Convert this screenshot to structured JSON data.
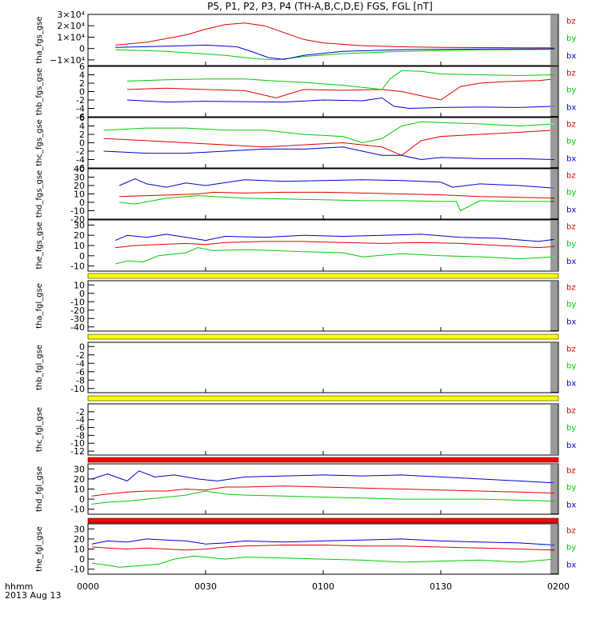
{
  "title": "P5, P1, P2, P3, P4 (TH-A,B,C,D,E) FGS, FGL [nT]",
  "footer": {
    "time_label": "hhmm",
    "date_label": "2013 Aug 13"
  },
  "legend": {
    "bz": "bz",
    "by": "by",
    "bx": "bx"
  },
  "colors": {
    "bx": "#0000cc",
    "by": "#00cc00",
    "bz": "#dd0000",
    "bar_yellow": "#ffff00",
    "bar_red": "#ff0000"
  },
  "chart_data": {
    "type": "line",
    "x_axis": {
      "unit": "hhmm",
      "ticks": [
        "0000",
        "0030",
        "0100",
        "0130",
        "0200"
      ],
      "range_minutes": [
        0,
        120
      ]
    },
    "panels": [
      {
        "ylabel": "tha_fgs_gse",
        "ylim": [
          -15000,
          30000
        ],
        "ytick_labels": [
          "3×10⁴",
          "2×10⁴",
          "1×10⁴",
          "0",
          "−1×10⁴"
        ],
        "ytick_values": [
          30000,
          20000,
          10000,
          0,
          -10000
        ],
        "series": [
          {
            "name": "bz",
            "x": [
              7,
              15,
              25,
              30,
              35,
              40,
              45,
              50,
              55,
              60,
              70,
              80,
              90,
              100,
              110,
              119
            ],
            "y": [
              3000,
              5500,
              12000,
              17000,
              21000,
              22500,
              20000,
              14000,
              8000,
              5000,
              2500,
              1500,
              1000,
              800,
              700,
              600
            ]
          },
          {
            "name": "by",
            "x": [
              7,
              20,
              35,
              43,
              48,
              55,
              65,
              80,
              100,
              119
            ],
            "y": [
              -1000,
              -2500,
              -6000,
              -9000,
              -10000,
              -7000,
              -4500,
              -2500,
              -1200,
              -800
            ]
          },
          {
            "name": "bx",
            "x": [
              7,
              20,
              30,
              38,
              42,
              46,
              50,
              55,
              65,
              80,
              100,
              119
            ],
            "y": [
              1000,
              2000,
              3000,
              1500,
              -3000,
              -8000,
              -9500,
              -6000,
              -2500,
              -1000,
              -400,
              -200
            ]
          }
        ]
      },
      {
        "ylabel": "thb_fgs_gse",
        "ylim": [
          -6,
          6
        ],
        "ytick_labels": [
          "6",
          "4",
          "2",
          "0",
          "-2",
          "-4",
          "-6"
        ],
        "ytick_values": [
          6,
          4,
          2,
          0,
          -2,
          -4,
          -6
        ],
        "series": [
          {
            "name": "bz",
            "x": [
              10,
              20,
              30,
              40,
              48,
              55,
              65,
              75,
              80,
              85,
              90,
              95,
              100,
              105,
              110,
              115,
              119
            ],
            "y": [
              0.5,
              0.8,
              0.5,
              0.2,
              -1.5,
              0.5,
              0.3,
              0.5,
              0,
              -1,
              -2,
              1.2,
              2,
              2.3,
              2.5,
              2.6,
              3
            ]
          },
          {
            "name": "by",
            "x": [
              10,
              20,
              30,
              40,
              48,
              55,
              65,
              75,
              77,
              80,
              85,
              90,
              100,
              110,
              119
            ],
            "y": [
              2.5,
              2.8,
              3,
              3,
              2.5,
              2.2,
              1.5,
              0.5,
              3,
              5,
              4.8,
              4.2,
              4,
              3.8,
              4
            ]
          },
          {
            "name": "bx",
            "x": [
              10,
              20,
              30,
              40,
              50,
              60,
              70,
              75,
              78,
              82,
              90,
              100,
              110,
              119
            ],
            "y": [
              -2,
              -2.5,
              -2.3,
              -2.4,
              -2.5,
              -2,
              -2.2,
              -1.5,
              -3.5,
              -4,
              -3.8,
              -3.7,
              -3.8,
              -3.5
            ]
          }
        ]
      },
      {
        "ylabel": "thc_fgs_gse",
        "ylim": [
          -6,
          6
        ],
        "ytick_labels": [
          "6",
          "4",
          "2",
          "0",
          "-2",
          "-4",
          "-6"
        ],
        "ytick_values": [
          6,
          4,
          2,
          0,
          -2,
          -4,
          -6
        ],
        "series": [
          {
            "name": "bz",
            "x": [
              4,
              15,
              25,
              35,
              45,
              55,
              65,
              70,
              75,
              80,
              85,
              90,
              100,
              110,
              119
            ],
            "y": [
              1,
              0.5,
              0,
              -0.5,
              -1,
              -0.5,
              0,
              -0.5,
              -1,
              -3,
              0.5,
              1.5,
              2,
              2.5,
              3
            ]
          },
          {
            "name": "by",
            "x": [
              4,
              15,
              25,
              35,
              45,
              55,
              65,
              70,
              75,
              80,
              85,
              90,
              100,
              110,
              119
            ],
            "y": [
              3,
              3.5,
              3.5,
              3,
              3,
              2,
              1.5,
              0,
              1,
              4,
              5,
              4.8,
              4.5,
              4,
              4.5
            ]
          },
          {
            "name": "bx",
            "x": [
              4,
              15,
              25,
              35,
              45,
              55,
              65,
              70,
              75,
              80,
              85,
              90,
              100,
              110,
              119
            ],
            "y": [
              -2,
              -2.5,
              -2.5,
              -2,
              -1.5,
              -1.5,
              -1,
              -2,
              -3,
              -3,
              -4,
              -3.5,
              -3.8,
              -3.8,
              -4
            ]
          }
        ]
      },
      {
        "ylabel": "thd_fgs_gse",
        "ylim": [
          -20,
          40
        ],
        "ytick_labels": [
          "40",
          "30",
          "20",
          "10",
          "0",
          "-10",
          "-20"
        ],
        "ytick_values": [
          40,
          30,
          20,
          10,
          0,
          -10,
          -20
        ],
        "series": [
          {
            "name": "bz",
            "x": [
              8,
              15,
              22,
              28,
              32,
              40,
              50,
              60,
              70,
              80,
              90,
              100,
              110,
              119
            ],
            "y": [
              7,
              8,
              9,
              10,
              12,
              11,
              12,
              12,
              11,
              10,
              9,
              7,
              6,
              5
            ]
          },
          {
            "name": "by",
            "x": [
              8,
              12,
              20,
              28,
              32,
              40,
              50,
              60,
              70,
              80,
              90,
              94,
              95,
              100,
              110,
              119
            ],
            "y": [
              0,
              -2,
              5,
              8,
              7,
              5,
              4,
              3,
              2,
              2,
              1,
              1,
              -10,
              2,
              1,
              1
            ]
          },
          {
            "name": "bx",
            "x": [
              8,
              12,
              15,
              20,
              25,
              30,
              40,
              50,
              60,
              70,
              80,
              90,
              93,
              100,
              110,
              119
            ],
            "y": [
              20,
              28,
              22,
              18,
              23,
              20,
              27,
              25,
              26,
              27,
              26,
              24,
              18,
              22,
              20,
              17
            ]
          }
        ]
      },
      {
        "ylabel": "the_fgs_gse",
        "ylim": [
          -15,
          35
        ],
        "ytick_labels": [
          "30",
          "20",
          "10",
          "0",
          "-10"
        ],
        "ytick_values": [
          30,
          20,
          10,
          0,
          -10
        ],
        "series": [
          {
            "name": "bz",
            "x": [
              7,
              12,
              18,
              25,
              30,
              35,
              45,
              55,
              65,
              75,
              85,
              95,
              105,
              115,
              119
            ],
            "y": [
              8,
              10,
              11,
              12,
              11,
              13,
              14,
              14,
              13,
              12,
              13,
              12,
              10,
              8,
              9
            ]
          },
          {
            "name": "by",
            "x": [
              7,
              10,
              14,
              18,
              25,
              28,
              32,
              40,
              55,
              65,
              70,
              80,
              90,
              100,
              110,
              119
            ],
            "y": [
              -8,
              -5,
              -6,
              0,
              3,
              8,
              5,
              6,
              4,
              3,
              -1,
              2,
              0,
              -1,
              -3,
              -1
            ]
          },
          {
            "name": "bx",
            "x": [
              7,
              10,
              15,
              20,
              25,
              30,
              35,
              45,
              55,
              65,
              75,
              85,
              95,
              105,
              115,
              119
            ],
            "y": [
              15,
              20,
              18,
              21,
              18,
              15,
              19,
              18,
              20,
              19,
              20,
              21,
              18,
              17,
              14,
              16
            ]
          }
        ]
      },
      {
        "ylabel": "tha_fgl_gse",
        "ylim": [
          -45,
          15
        ],
        "ytick_labels": [
          "10",
          "0",
          "-10",
          "-20",
          "-30",
          "-40"
        ],
        "ytick_values": [
          10,
          0,
          -10,
          -20,
          -30,
          -40
        ],
        "series": []
      },
      {
        "ylabel": "thb_fgl_gse",
        "ylim": [
          -11,
          1
        ],
        "ytick_labels": [
          "0",
          "-2",
          "-4",
          "-6",
          "-8",
          "-10"
        ],
        "ytick_values": [
          0,
          -2,
          -4,
          -6,
          -8,
          -10
        ],
        "series": []
      },
      {
        "ylabel": "thc_fgl_gse",
        "ylim": [
          -13,
          0
        ],
        "ytick_labels": [
          "-2",
          "-4",
          "-6",
          "-8",
          "-10",
          "-12"
        ],
        "ytick_values": [
          -2,
          -4,
          -6,
          -8,
          -10,
          -12
        ],
        "series": []
      },
      {
        "ylabel": "thd_fgl_gse",
        "ylim": [
          -15,
          35
        ],
        "ytick_labels": [
          "30",
          "20",
          "10",
          "0",
          "-10"
        ],
        "ytick_values": [
          30,
          20,
          10,
          0,
          -10
        ],
        "series": [
          {
            "name": "bz",
            "x": [
              1,
              5,
              10,
              15,
              20,
              25,
              30,
              35,
              40,
              50,
              60,
              70,
              80,
              90,
              100,
              110,
              119
            ],
            "y": [
              3,
              5,
              7,
              8,
              8,
              10,
              9,
              12,
              12,
              13,
              12,
              11,
              10,
              9,
              8,
              7,
              6
            ]
          },
          {
            "name": "by",
            "x": [
              1,
              5,
              10,
              15,
              20,
              25,
              30,
              35,
              40,
              50,
              60,
              70,
              80,
              90,
              100,
              110,
              119
            ],
            "y": [
              -5,
              -3,
              -2,
              0,
              2,
              4,
              8,
              5,
              4,
              3,
              2,
              1,
              0,
              0,
              0,
              -1,
              -2
            ]
          },
          {
            "name": "bx",
            "x": [
              1,
              5,
              10,
              13,
              17,
              22,
              28,
              33,
              40,
              50,
              60,
              70,
              80,
              90,
              100,
              110,
              119
            ],
            "y": [
              20,
              25,
              18,
              28,
              22,
              24,
              20,
              18,
              22,
              23,
              24,
              23,
              24,
              22,
              20,
              18,
              16
            ]
          }
        ]
      },
      {
        "ylabel": "the_fgl_gse",
        "ylim": [
          -15,
          35
        ],
        "ytick_labels": [
          "30",
          "20",
          "10",
          "0",
          "-10"
        ],
        "ytick_values": [
          30,
          20,
          10,
          0,
          -10
        ],
        "series": [
          {
            "name": "bz",
            "x": [
              1,
              5,
              10,
              15,
              20,
              25,
              30,
              35,
              40,
              50,
              60,
              70,
              80,
              90,
              100,
              110,
              119
            ],
            "y": [
              12,
              11,
              10,
              11,
              10,
              9,
              10,
              12,
              13,
              14,
              14,
              13,
              13,
              12,
              11,
              10,
              9
            ]
          },
          {
            "name": "by",
            "x": [
              1,
              5,
              8,
              12,
              18,
              22,
              27,
              30,
              35,
              40,
              50,
              60,
              70,
              80,
              90,
              100,
              110,
              119
            ],
            "y": [
              -4,
              -6,
              -8,
              -7,
              -5,
              0,
              3,
              2,
              0,
              2,
              1,
              0,
              -1,
              -3,
              -2,
              -1,
              -3,
              0
            ]
          },
          {
            "name": "bx",
            "x": [
              1,
              5,
              10,
              15,
              20,
              25,
              30,
              35,
              40,
              50,
              60,
              70,
              80,
              90,
              100,
              110,
              119
            ],
            "y": [
              15,
              18,
              17,
              20,
              19,
              18,
              15,
              16,
              18,
              17,
              18,
              19,
              20,
              18,
              17,
              16,
              14
            ]
          }
        ]
      }
    ],
    "separator_bars": [
      {
        "after_panel": 4,
        "color": "yellow"
      },
      {
        "after_panel": 5,
        "color": "yellow"
      },
      {
        "after_panel": 6,
        "color": "yellow"
      },
      {
        "after_panel": 7,
        "color": "red"
      },
      {
        "after_panel": 8,
        "color": "red"
      }
    ]
  }
}
